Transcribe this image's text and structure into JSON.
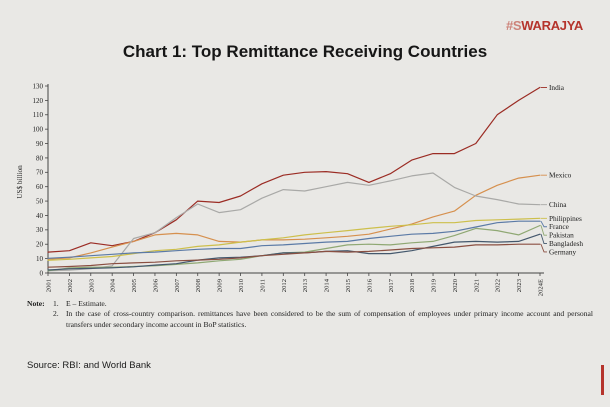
{
  "brand": "#SWARAJYA",
  "title": "Chart 1: Top Remittance Receiving Countries",
  "chart_data": {
    "type": "line",
    "title": "Chart 1: Top Remittance Receiving Countries",
    "ylabel": "US$ billion",
    "ylim": [
      0,
      130
    ],
    "ytick_step": 10,
    "grid": false,
    "legend_position": "right-end-labels",
    "x": [
      "2001",
      "2002",
      "2003",
      "2004",
      "2005",
      "2006",
      "2007",
      "2008",
      "2009",
      "2010",
      "2011",
      "2012",
      "2013",
      "2014",
      "2015",
      "2016",
      "2017",
      "2018",
      "2019",
      "2020",
      "2021",
      "2022",
      "2023",
      "2024E"
    ],
    "series": [
      {
        "name": "India",
        "color": "#9b2c24",
        "values": [
          14.5,
          15.5,
          21,
          19,
          22,
          28,
          37,
          50,
          49,
          53.5,
          62,
          68,
          70,
          70.5,
          69,
          63,
          69,
          78.5,
          83,
          83,
          90,
          110,
          120,
          129
        ]
      },
      {
        "name": "Mexico",
        "color": "#d6904e",
        "values": [
          9.6,
          10.5,
          14,
          18,
          22,
          26.5,
          27.5,
          26.5,
          22,
          21.5,
          23,
          23,
          23.5,
          24.5,
          25.5,
          27,
          30.5,
          34,
          39,
          43,
          54,
          61,
          66,
          68
        ]
      },
      {
        "name": "China",
        "color": "#a9a9a7",
        "values": [
          1.5,
          2,
          3,
          5,
          24,
          28,
          38.5,
          48,
          42,
          44,
          52,
          58,
          57,
          60,
          63,
          61,
          64,
          67.5,
          69.5,
          59.5,
          53.5,
          51,
          48,
          47.5
        ]
      },
      {
        "name": "Philippines",
        "color": "#cdbf4b",
        "values": [
          8.8,
          9.5,
          10.5,
          11.5,
          13.5,
          15.5,
          16.5,
          18.5,
          19.5,
          21.5,
          23,
          24.5,
          26.5,
          28,
          29.5,
          31,
          32.5,
          33.5,
          35,
          35,
          36.5,
          37,
          37.5,
          38
        ]
      },
      {
        "name": "France",
        "color": "#5b7aa6",
        "values": [
          10.2,
          11,
          12,
          13,
          14,
          14.5,
          15.5,
          16.5,
          17,
          17,
          19,
          19.5,
          20.5,
          21.5,
          22,
          24,
          25.5,
          27,
          27.5,
          29,
          32,
          35,
          36,
          36
        ]
      },
      {
        "name": "Pakistan",
        "color": "#8fa873",
        "values": [
          1.5,
          3.5,
          4,
          4,
          4.5,
          5,
          6,
          7,
          8.5,
          9.5,
          12,
          14,
          14.5,
          17,
          19.5,
          20,
          19.5,
          21,
          22,
          26,
          31,
          29.5,
          26.5,
          33
        ]
      },
      {
        "name": "Bangladesh",
        "color": "#44586d",
        "values": [
          2.1,
          2.9,
          3.2,
          3.6,
          4.3,
          5.5,
          6.5,
          9,
          10.5,
          11,
          12,
          14,
          14,
          15,
          15.5,
          13.5,
          13.5,
          15.5,
          18.5,
          21.5,
          22,
          21.5,
          22,
          27
        ]
      },
      {
        "name": "Germany",
        "color": "#8a4f41",
        "values": [
          4,
          4.5,
          5.2,
          6.5,
          7,
          7.5,
          8.5,
          9,
          9.5,
          10.5,
          12,
          13,
          14,
          15,
          14.5,
          15,
          16,
          17,
          17.5,
          18,
          19.5,
          19.5,
          20,
          20
        ]
      }
    ]
  },
  "notes": {
    "label": "Note:",
    "items": [
      {
        "num": "1.",
        "text": "E – Estimate."
      },
      {
        "num": "2.",
        "text": "In the case of cross-country comparison. remittances have been considered to be the sum of compensation of employees under primary income account and personal transfers under secondary income account in BoP statistics."
      }
    ]
  },
  "source": "Source: RBI: and World Bank",
  "colors": {
    "brand": "#b5342c",
    "background": "#e9e8e5",
    "axis": "#444444"
  }
}
